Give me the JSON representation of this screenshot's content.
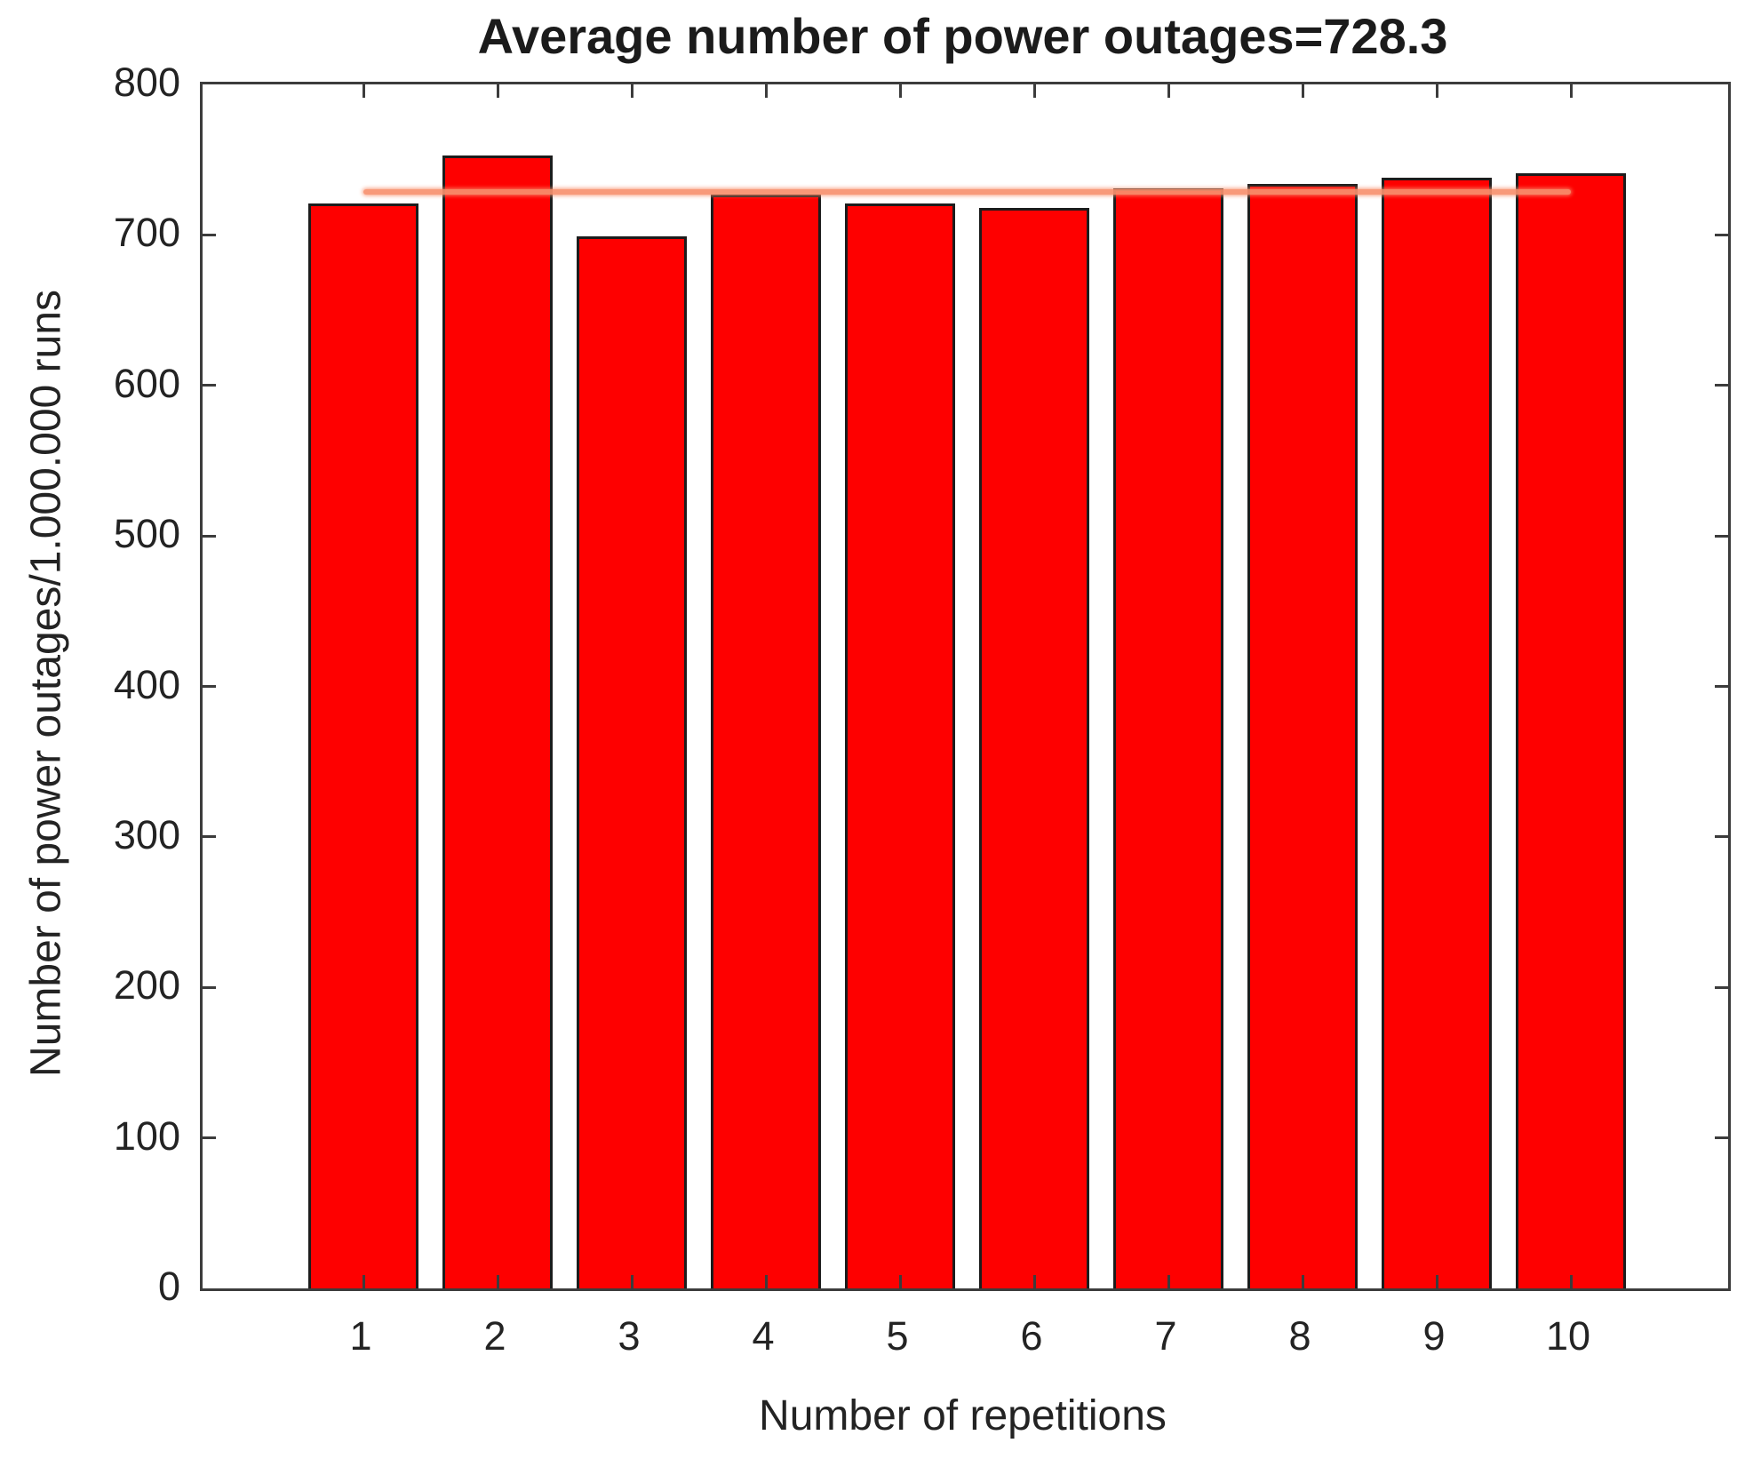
{
  "figure": {
    "background": "#ffffff"
  },
  "chart_data": {
    "type": "bar",
    "title": "Average number of power outages=728.3",
    "xlabel": "Number of repetitions",
    "ylabel": "Number of power outages/1.000.000 runs",
    "categories": [
      "1",
      "2",
      "3",
      "4",
      "5",
      "6",
      "7",
      "8",
      "9",
      "10"
    ],
    "values": [
      721,
      753,
      699,
      727,
      721,
      718,
      731,
      734,
      738,
      741
    ],
    "mean_line": {
      "value": 728.3,
      "x_start": 1,
      "x_end": 10,
      "color": "#f8916e"
    },
    "ylim": [
      0,
      800
    ],
    "y_ticks": [
      0,
      100,
      200,
      300,
      400,
      500,
      600,
      700,
      800
    ],
    "grid": false,
    "legend": "none",
    "bar_color": "#fe0000",
    "bar_edge_color": "#1c1c1c",
    "axis_color": "#3c3c3c",
    "text_color": "#232323"
  }
}
